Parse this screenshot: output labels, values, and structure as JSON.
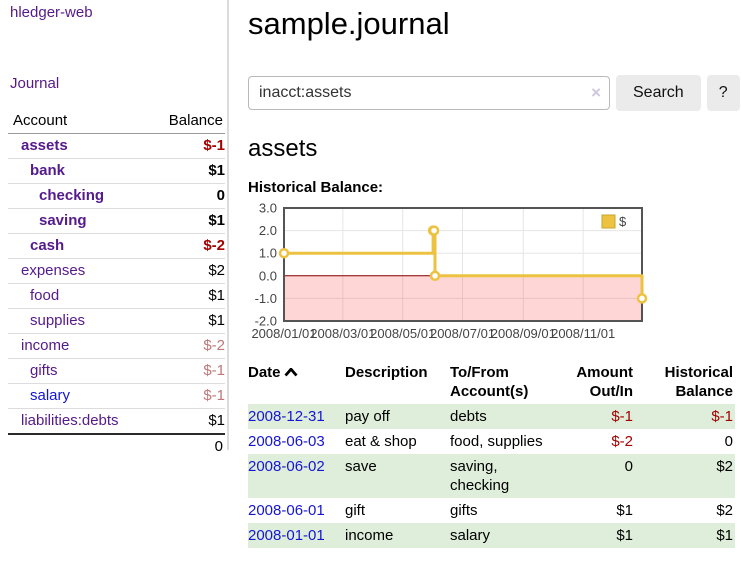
{
  "app": {
    "brand": "hledger-web"
  },
  "sidebar": {
    "journal_label": "Journal",
    "accounts_table": {
      "headers": {
        "account": "Account",
        "balance": "Balance"
      },
      "rows": [
        {
          "name": "assets",
          "balance": "$-1",
          "depth": 1,
          "bold": true,
          "balance_style": "negative",
          "link_style": "purple"
        },
        {
          "name": "bank",
          "balance": "$1",
          "depth": 2,
          "bold": true,
          "balance_style": "normal",
          "link_style": "purple"
        },
        {
          "name": "checking",
          "balance": "0",
          "depth": 3,
          "bold": true,
          "balance_style": "normal",
          "link_style": "purple"
        },
        {
          "name": "saving",
          "balance": "$1",
          "depth": 3,
          "bold": true,
          "balance_style": "normal",
          "link_style": "purple"
        },
        {
          "name": "cash",
          "balance": "$-2",
          "depth": 2,
          "bold": true,
          "balance_style": "negative",
          "link_style": "purple"
        },
        {
          "name": "expenses",
          "balance": "$2",
          "depth": 1,
          "bold": false,
          "balance_style": "normal",
          "link_style": "purple"
        },
        {
          "name": "food",
          "balance": "$1",
          "depth": 2,
          "bold": false,
          "balance_style": "normal",
          "link_style": "purple"
        },
        {
          "name": "supplies",
          "balance": "$1",
          "depth": 2,
          "bold": false,
          "balance_style": "normal",
          "link_style": "purple"
        },
        {
          "name": "income",
          "balance": "$-2",
          "depth": 1,
          "bold": false,
          "balance_style": "negative_muted",
          "link_style": "purple"
        },
        {
          "name": "gifts",
          "balance": "$-1",
          "depth": 2,
          "bold": false,
          "balance_style": "negative_muted",
          "link_style": "purple"
        },
        {
          "name": "salary",
          "balance": "$-1",
          "depth": 2,
          "bold": false,
          "balance_style": "negative_muted",
          "link_style": "blue"
        },
        {
          "name": "liabilities:debts",
          "balance": "$1",
          "depth": 1,
          "bold": false,
          "balance_style": "normal",
          "link_style": "purple"
        }
      ],
      "total": "0"
    }
  },
  "header": {
    "title": "sample.journal"
  },
  "search": {
    "value": "inacct:assets",
    "clear_icon": "×",
    "button_label": "Search",
    "help_label": "?"
  },
  "account_page": {
    "title": "assets",
    "chart_label": "Historical Balance:"
  },
  "chart_data": {
    "type": "line",
    "title": "Historical Balance:",
    "x_range": [
      "2008-01-01",
      "2008-12-31"
    ],
    "y_range": [
      -2,
      3
    ],
    "x_ticks": [
      {
        "date": "2008-01-01",
        "label": "2008/01/01"
      },
      {
        "date": "2008-03-01",
        "label": "2008/03/01"
      },
      {
        "date": "2008-05-01",
        "label": "2008/05/01"
      },
      {
        "date": "2008-07-01",
        "label": "2008/07/01"
      },
      {
        "date": "2008-09-01",
        "label": "2008/09/01"
      },
      {
        "date": "2008-11-01",
        "label": "2008/11/01"
      }
    ],
    "y_ticks": [
      {
        "value": 3,
        "label": "3.0"
      },
      {
        "value": 2,
        "label": "2.0"
      },
      {
        "value": 1,
        "label": "1.0"
      },
      {
        "value": 0,
        "label": "0.0"
      },
      {
        "value": -1,
        "label": "-1.0"
      },
      {
        "value": -2,
        "label": "-2.0"
      }
    ],
    "series": [
      {
        "name": "$",
        "color": "#edc240",
        "step": true,
        "points": [
          {
            "date": "2008-01-01",
            "value": 1
          },
          {
            "date": "2008-06-01",
            "value": 2
          },
          {
            "date": "2008-06-02",
            "value": 2
          },
          {
            "date": "2008-06-03",
            "value": 0
          },
          {
            "date": "2008-12-31",
            "value": -1
          }
        ]
      }
    ],
    "legend_position": "top-right",
    "grid": true,
    "zero_line_color": "#8b0000",
    "negative_region_color": "rgba(255,0,0,0.16)",
    "gridline_color": "#e6e6e6",
    "border_color": "#545454",
    "tick_label_color": "#444444"
  },
  "register_table": {
    "headers": {
      "date": "Date",
      "description": "Description",
      "accounts_line1": "To/From",
      "accounts_line2": "Account(s)",
      "amount_line1": "Amount",
      "amount_line2": "Out/In",
      "balance_line1": "Historical",
      "balance_line2": "Balance"
    },
    "rows": [
      {
        "date": "2008-12-31",
        "description": "pay off",
        "accounts": "debts",
        "amount": "$-1",
        "amount_negative": true,
        "balance": "$-1",
        "balance_negative": true
      },
      {
        "date": "2008-06-03",
        "description": "eat & shop",
        "accounts": "food, supplies",
        "amount": "$-2",
        "amount_negative": true,
        "balance": "0",
        "balance_negative": false
      },
      {
        "date": "2008-06-02",
        "description": "save",
        "accounts": "saving, checking",
        "amount": "0",
        "amount_negative": false,
        "balance": "$2",
        "balance_negative": false
      },
      {
        "date": "2008-06-01",
        "description": "gift",
        "accounts": "gifts",
        "amount": "$1",
        "amount_negative": false,
        "balance": "$2",
        "balance_negative": false
      },
      {
        "date": "2008-01-01",
        "description": "income",
        "accounts": "salary",
        "amount": "$1",
        "amount_negative": false,
        "balance": "$1",
        "balance_negative": false
      }
    ]
  },
  "colors": {
    "link_purple": "#551a8b",
    "link_blue": "#1515d6",
    "negative": "#a40000",
    "negative_muted": "#c07777",
    "row_stripe_green": "#dfeeda",
    "chart_line_gold": "#edc240",
    "button_bg": "#ebebeb"
  }
}
